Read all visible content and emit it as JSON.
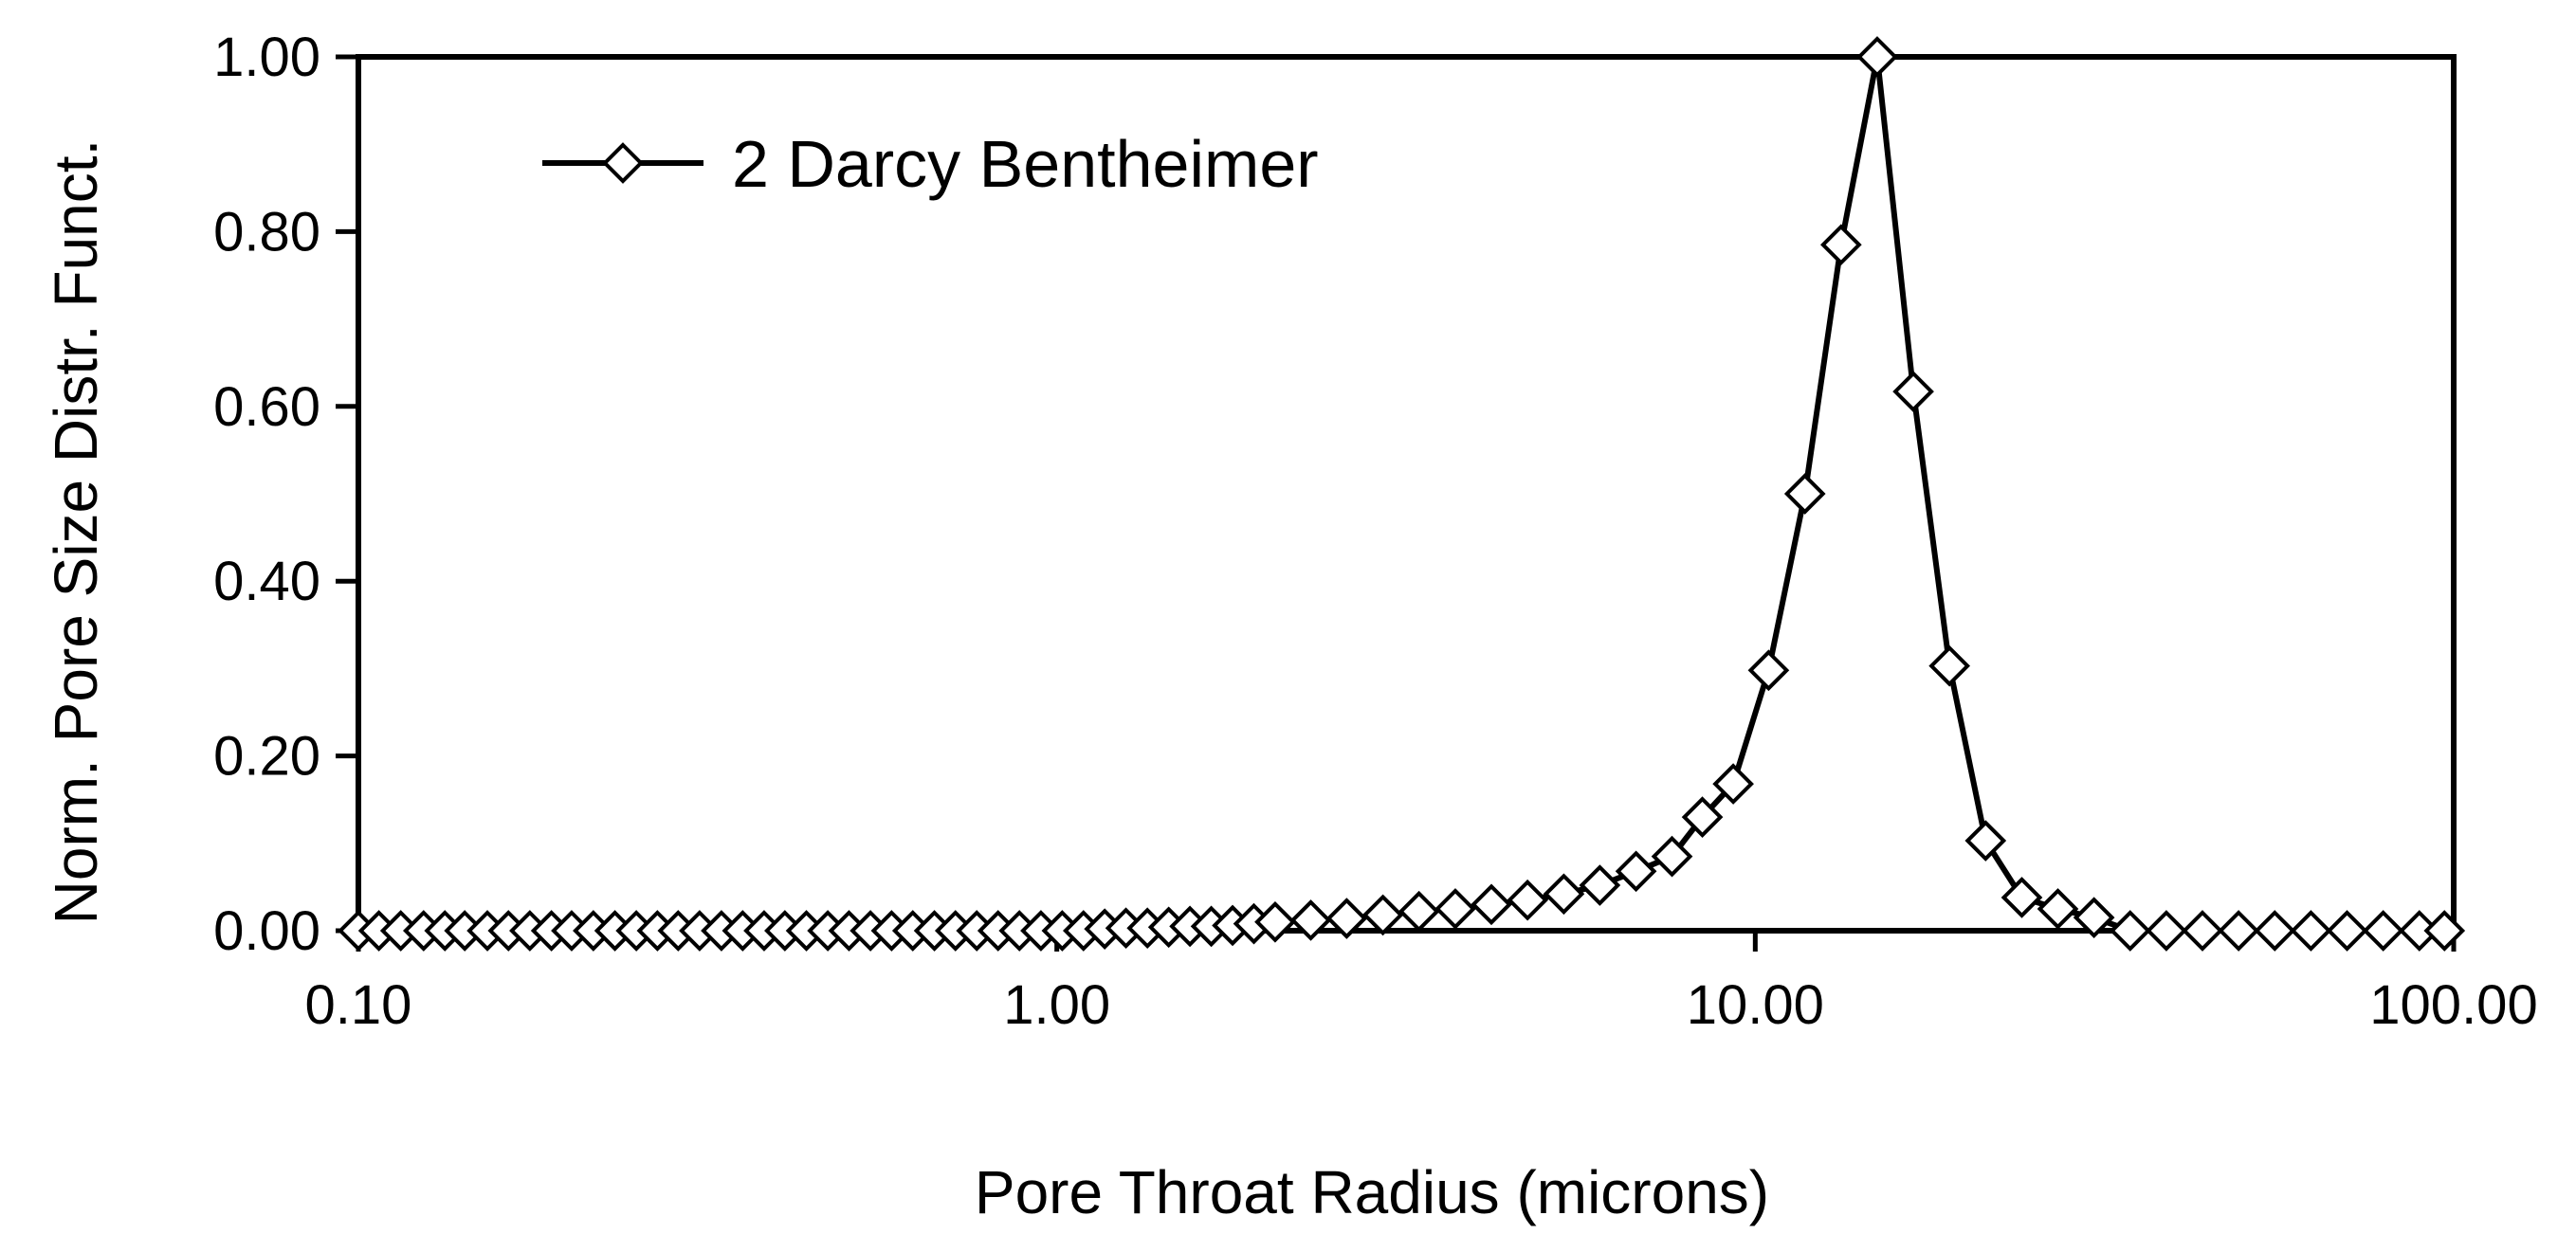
{
  "chart_data": {
    "type": "line",
    "title": "",
    "xlabel": "Pore Throat Radius (microns)",
    "ylabel": "Norm. Pore Size Distr. Funct.",
    "x_scale": "log",
    "xlim": [
      0.1,
      100
    ],
    "ylim": [
      0,
      1
    ],
    "x_ticks": [
      0.1,
      1,
      10,
      100
    ],
    "x_tick_labels": [
      "0.10",
      "1.00",
      "10.00",
      "100.00"
    ],
    "y_ticks": [
      0,
      0.2,
      0.4,
      0.6,
      0.8,
      1.0
    ],
    "y_tick_labels": [
      "0.00",
      "0.20",
      "0.40",
      "0.60",
      "0.80",
      "1.00"
    ],
    "grid": false,
    "legend_position": "top-left",
    "marker": "open-diamond",
    "series": [
      {
        "name": "2 Darcy Bentheimer",
        "color": "#000000",
        "x": [
          0.1,
          0.107,
          0.115,
          0.124,
          0.133,
          0.142,
          0.153,
          0.164,
          0.176,
          0.189,
          0.202,
          0.217,
          0.233,
          0.25,
          0.268,
          0.287,
          0.308,
          0.331,
          0.355,
          0.381,
          0.408,
          0.438,
          0.47,
          0.504,
          0.541,
          0.58,
          0.622,
          0.668,
          0.716,
          0.768,
          0.824,
          0.884,
          0.949,
          1.018,
          1.092,
          1.171,
          1.256,
          1.348,
          1.446,
          1.551,
          1.664,
          1.785,
          1.915,
          2.054,
          2.31,
          2.6,
          2.93,
          3.3,
          3.72,
          4.19,
          4.72,
          5.32,
          5.99,
          6.75,
          7.6,
          8.4,
          9.3,
          10.45,
          11.78,
          13.27,
          14.95,
          16.84,
          18.97,
          21.37,
          24.08,
          27.12,
          30.55,
          34.42,
          38.78,
          43.68,
          49.21,
          55.44,
          62.46,
          70.36,
          79.27,
          89.3,
          97.0
        ],
        "y": [
          0.0,
          0.0,
          0.0,
          0.0,
          0.0,
          0.0,
          0.0,
          0.0,
          0.0,
          0.0,
          0.0,
          0.0,
          0.0,
          0.0,
          0.0,
          0.0,
          0.0,
          0.0,
          0.0,
          0.0,
          0.0,
          0.0,
          0.0,
          0.0,
          0.0,
          0.0,
          0.0,
          0.0,
          0.0,
          0.0,
          0.0,
          0.0,
          0.0,
          0.0,
          0.0,
          0.002,
          0.003,
          0.003,
          0.004,
          0.005,
          0.005,
          0.006,
          0.008,
          0.01,
          0.012,
          0.014,
          0.018,
          0.022,
          0.025,
          0.03,
          0.035,
          0.042,
          0.052,
          0.068,
          0.085,
          0.13,
          0.168,
          0.298,
          0.5,
          0.785,
          1.0,
          0.617,
          0.303,
          0.103,
          0.038,
          0.025,
          0.015,
          0.0,
          0.0,
          0.0,
          0.0,
          0.0,
          0.0,
          0.0,
          0.0,
          0.0,
          0.0
        ]
      }
    ]
  }
}
